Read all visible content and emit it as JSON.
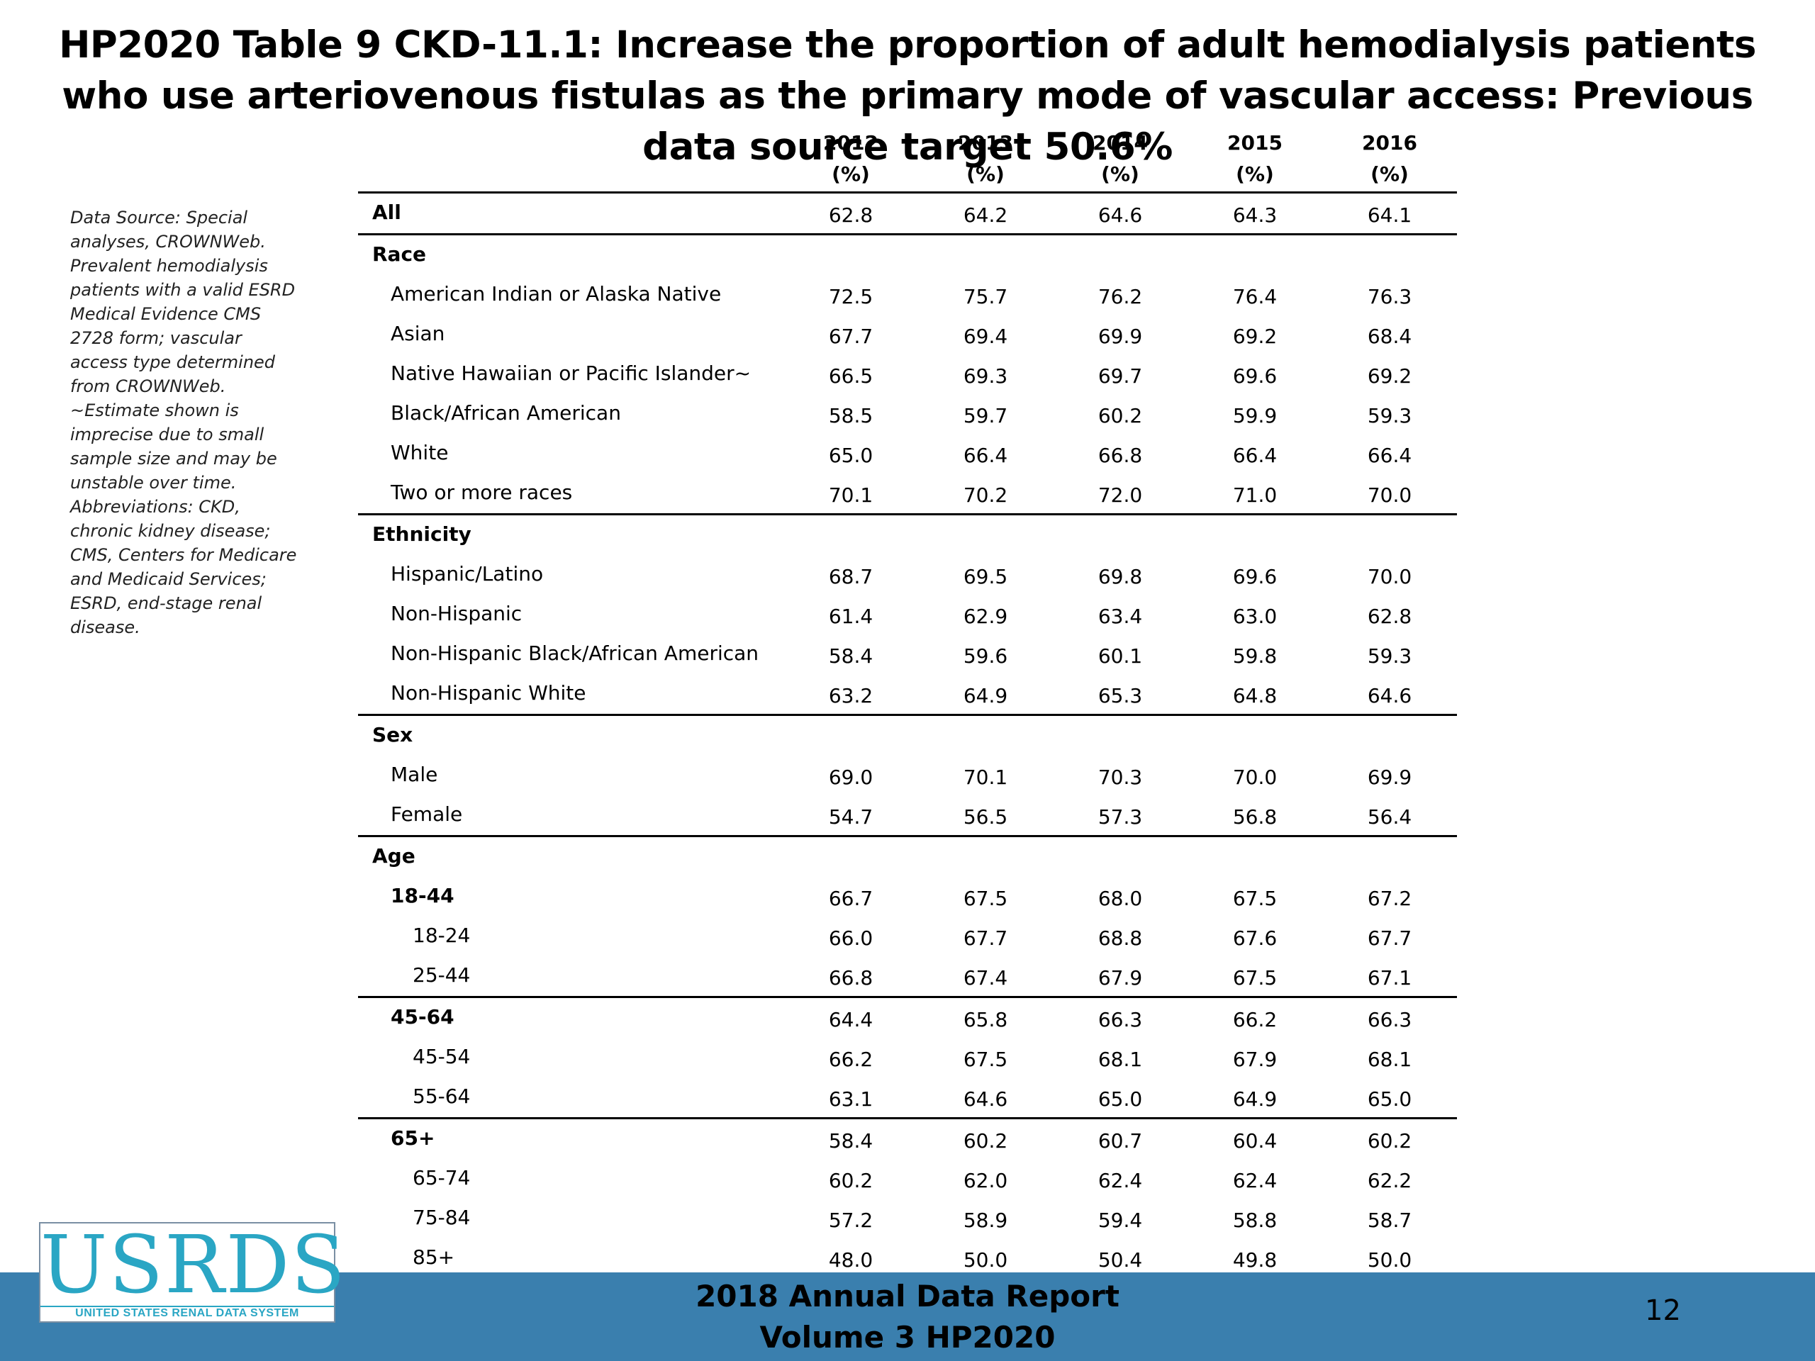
{
  "title": "HP2020 Table 9 CKD-11.1: Increase the proportion of adult hemodialysis patients who use arteriovenous fistulas as the primary mode of vascular access: Previous data source target 50.6%",
  "note": "Data Source: Special analyses, CROWNWeb. Prevalent hemodialysis patients with a valid ESRD Medical Evidence CMS 2728 form; vascular access type determined from CROWNWeb. ~Estimate shown is imprecise due to small sample size and may be unstable over time. Abbreviations: CKD, chronic kidney disease; CMS, Centers for Medicare and Medicaid Services; ESRD, end-stage renal disease.",
  "columns": [
    {
      "year": "2012",
      "unit": "(%)"
    },
    {
      "year": "2013",
      "unit": "(%)"
    },
    {
      "year": "2014",
      "unit": "(%)"
    },
    {
      "year": "2015",
      "unit": "(%)"
    },
    {
      "year": "2016",
      "unit": "(%)"
    }
  ],
  "groups": [
    {
      "rows": [
        {
          "label": "All",
          "bold": true,
          "level": 0,
          "values": [
            "62.8",
            "64.2",
            "64.6",
            "64.3",
            "64.1"
          ]
        }
      ]
    },
    {
      "rows": [
        {
          "label": "Race",
          "bold": true,
          "level": 0,
          "values": []
        },
        {
          "label": "American Indian or Alaska Native",
          "level": 1,
          "values": [
            "72.5",
            "75.7",
            "76.2",
            "76.4",
            "76.3"
          ]
        },
        {
          "label": "Asian",
          "level": 1,
          "values": [
            "67.7",
            "69.4",
            "69.9",
            "69.2",
            "68.4"
          ]
        },
        {
          "label": "Native Hawaiian or Pacific Islander~",
          "level": 1,
          "values": [
            "66.5",
            "69.3",
            "69.7",
            "69.6",
            "69.2"
          ]
        },
        {
          "label": "Black/African American",
          "level": 1,
          "values": [
            "58.5",
            "59.7",
            "60.2",
            "59.9",
            "59.3"
          ]
        },
        {
          "label": "White",
          "level": 1,
          "values": [
            "65.0",
            "66.4",
            "66.8",
            "66.4",
            "66.4"
          ]
        },
        {
          "label": "Two or more races",
          "level": 1,
          "values": [
            "70.1",
            "70.2",
            "72.0",
            "71.0",
            "70.0"
          ]
        }
      ]
    },
    {
      "rows": [
        {
          "label": "Ethnicity",
          "bold": true,
          "level": 0,
          "values": []
        },
        {
          "label": "Hispanic/Latino",
          "level": 1,
          "values": [
            "68.7",
            "69.5",
            "69.8",
            "69.6",
            "70.0"
          ]
        },
        {
          "label": "Non-Hispanic",
          "level": 1,
          "values": [
            "61.4",
            "62.9",
            "63.4",
            "63.0",
            "62.8"
          ]
        },
        {
          "label": "Non-Hispanic Black/African American",
          "level": 1,
          "values": [
            "58.4",
            "59.6",
            "60.1",
            "59.8",
            "59.3"
          ]
        },
        {
          "label": "Non-Hispanic White",
          "level": 1,
          "values": [
            "63.2",
            "64.9",
            "65.3",
            "64.8",
            "64.6"
          ]
        }
      ]
    },
    {
      "rows": [
        {
          "label": "Sex",
          "bold": true,
          "level": 0,
          "values": []
        },
        {
          "label": "Male",
          "level": 1,
          "values": [
            "69.0",
            "70.1",
            "70.3",
            "70.0",
            "69.9"
          ]
        },
        {
          "label": "Female",
          "level": 1,
          "values": [
            "54.7",
            "56.5",
            "57.3",
            "56.8",
            "56.4"
          ]
        }
      ]
    },
    {
      "rows": [
        {
          "label": "Age",
          "bold": true,
          "level": 0,
          "values": []
        },
        {
          "label": "18-44",
          "bold": true,
          "level": 1,
          "values": [
            "66.7",
            "67.5",
            "68.0",
            "67.5",
            "67.2"
          ]
        },
        {
          "label": "18-24",
          "level": 2,
          "values": [
            "66.0",
            "67.7",
            "68.8",
            "67.6",
            "67.7"
          ]
        },
        {
          "label": "25-44",
          "level": 2,
          "values": [
            "66.8",
            "67.4",
            "67.9",
            "67.5",
            "67.1"
          ]
        }
      ]
    },
    {
      "rows": [
        {
          "label": "45-64",
          "bold": true,
          "level": 1,
          "values": [
            "64.4",
            "65.8",
            "66.3",
            "66.2",
            "66.3"
          ]
        },
        {
          "label": "45-54",
          "level": 2,
          "values": [
            "66.2",
            "67.5",
            "68.1",
            "67.9",
            "68.1"
          ]
        },
        {
          "label": "55-64",
          "level": 2,
          "values": [
            "63.1",
            "64.6",
            "65.0",
            "64.9",
            "65.0"
          ]
        }
      ]
    },
    {
      "rows": [
        {
          "label": "65+",
          "bold": true,
          "level": 1,
          "values": [
            "58.4",
            "60.2",
            "60.7",
            "60.4",
            "60.2"
          ]
        },
        {
          "label": "65-74",
          "level": 2,
          "values": [
            "60.2",
            "62.0",
            "62.4",
            "62.4",
            "62.2"
          ]
        },
        {
          "label": "75-84",
          "level": 2,
          "values": [
            "57.2",
            "58.9",
            "59.4",
            "58.8",
            "58.7"
          ]
        },
        {
          "label": "85+",
          "level": 2,
          "values": [
            "48.0",
            "50.0",
            "50.4",
            "49.8",
            "50.0"
          ]
        }
      ]
    }
  ],
  "footer": {
    "line1": "2018 Annual Data Report",
    "line2": "Volume 3 HP2020",
    "page": "12",
    "band_color": "#3a7fae"
  },
  "logo": {
    "word": "USRDS",
    "tagline": "UNITED STATES RENAL DATA SYSTEM",
    "color": "#2aa6c4"
  }
}
